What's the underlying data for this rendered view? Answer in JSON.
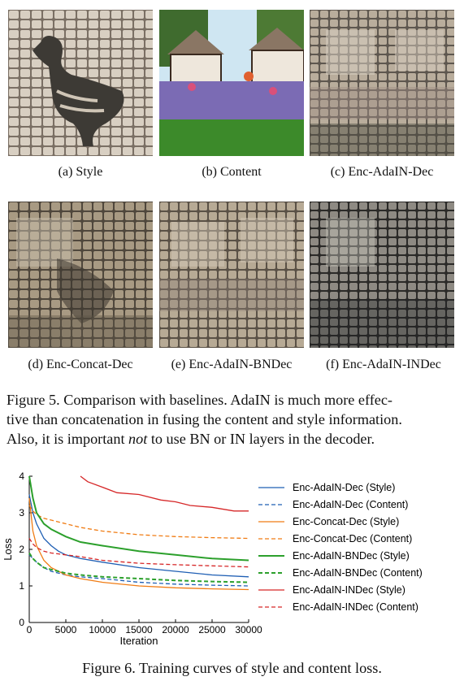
{
  "panels": [
    {
      "caption": "(a)  Style"
    },
    {
      "caption": "(b)  Content"
    },
    {
      "caption": "(c)  Enc-AdaIN-Dec"
    },
    {
      "caption": "(d)  Enc-Concat-Dec"
    },
    {
      "caption": "(e)  Enc-AdaIN-BNDec"
    },
    {
      "caption": "(f)  Enc-AdaIN-INDec"
    }
  ],
  "figure5": {
    "line1": "Figure 5. Comparison with baselines. AdaIN is much more effec-",
    "line2": "tive than concatenation in fusing the content and style information.",
    "line3_pre": "Also, it is important ",
    "line3_em": "not",
    "line3_post": " to use BN or IN layers in the decoder."
  },
  "figure6": {
    "caption": "Figure 6. Training curves of style and content loss."
  },
  "chart_data": {
    "type": "line",
    "title": "",
    "xlabel": "Iteration",
    "ylabel": "Loss",
    "xlim": [
      0,
      30000
    ],
    "ylim": [
      0,
      4
    ],
    "xticks": [
      0,
      5000,
      10000,
      15000,
      20000,
      25000,
      30000
    ],
    "yticks": [
      0,
      1,
      2,
      3,
      4
    ],
    "legend_position": "right",
    "grid": false,
    "series": [
      {
        "name": "Enc-AdaIN-Dec (Style)",
        "color": "#1f5fb4",
        "dashed": false,
        "x": [
          0,
          500,
          1000,
          2000,
          3000,
          4000,
          5000,
          7000,
          10000,
          15000,
          20000,
          25000,
          30000
        ],
        "y": [
          3.5,
          3.0,
          2.7,
          2.3,
          2.1,
          1.95,
          1.85,
          1.75,
          1.65,
          1.5,
          1.4,
          1.3,
          1.25
        ]
      },
      {
        "name": "Enc-AdaIN-Dec (Content)",
        "color": "#1f5fb4",
        "dashed": true,
        "x": [
          0,
          500,
          1000,
          2000,
          3000,
          5000,
          7000,
          10000,
          15000,
          20000,
          25000,
          30000
        ],
        "y": [
          1.85,
          1.75,
          1.65,
          1.5,
          1.4,
          1.3,
          1.25,
          1.2,
          1.1,
          1.05,
          1.02,
          1.0
        ]
      },
      {
        "name": "Enc-Concat-Dec (Style)",
        "color": "#f07c14",
        "dashed": false,
        "x": [
          0,
          500,
          1000,
          2000,
          3000,
          5000,
          7000,
          10000,
          15000,
          20000,
          25000,
          30000
        ],
        "y": [
          3.4,
          2.5,
          2.1,
          1.7,
          1.5,
          1.3,
          1.2,
          1.1,
          1.0,
          0.95,
          0.92,
          0.9
        ]
      },
      {
        "name": "Enc-Concat-Dec (Content)",
        "color": "#f07c14",
        "dashed": true,
        "x": [
          0,
          500,
          1000,
          2000,
          3000,
          5000,
          7000,
          10000,
          15000,
          20000,
          25000,
          30000
        ],
        "y": [
          3.2,
          3.05,
          2.95,
          2.85,
          2.8,
          2.7,
          2.6,
          2.5,
          2.4,
          2.35,
          2.32,
          2.3
        ]
      },
      {
        "name": "Enc-AdaIN-BNDec (Style)",
        "color": "#2ca02c",
        "dashed": false,
        "x": [
          0,
          500,
          1000,
          2000,
          3000,
          5000,
          7000,
          10000,
          15000,
          20000,
          25000,
          30000
        ],
        "y": [
          4.0,
          3.4,
          3.0,
          2.7,
          2.55,
          2.35,
          2.2,
          2.1,
          1.95,
          1.85,
          1.75,
          1.7
        ]
      },
      {
        "name": "Enc-AdaIN-BNDec (Content)",
        "color": "#2ca02c",
        "dashed": true,
        "x": [
          0,
          500,
          1000,
          2000,
          3000,
          5000,
          7000,
          10000,
          15000,
          20000,
          25000,
          30000
        ],
        "y": [
          1.9,
          1.75,
          1.65,
          1.5,
          1.45,
          1.35,
          1.3,
          1.25,
          1.2,
          1.15,
          1.12,
          1.1
        ]
      },
      {
        "name": "Enc-AdaIN-INDec (Style)",
        "color": "#d62728",
        "dashed": false,
        "x": [
          7000,
          8000,
          10000,
          12000,
          15000,
          18000,
          20000,
          22000,
          25000,
          28000,
          30000
        ],
        "y": [
          4.0,
          3.85,
          3.7,
          3.55,
          3.5,
          3.35,
          3.3,
          3.2,
          3.15,
          3.05,
          3.05
        ]
      },
      {
        "name": "Enc-AdaIN-INDec (Content)",
        "color": "#d62728",
        "dashed": true,
        "x": [
          0,
          500,
          1000,
          2000,
          3000,
          5000,
          7000,
          10000,
          15000,
          20000,
          25000,
          30000
        ],
        "y": [
          2.3,
          2.15,
          2.05,
          1.95,
          1.9,
          1.85,
          1.8,
          1.7,
          1.62,
          1.58,
          1.55,
          1.52
        ]
      }
    ]
  }
}
